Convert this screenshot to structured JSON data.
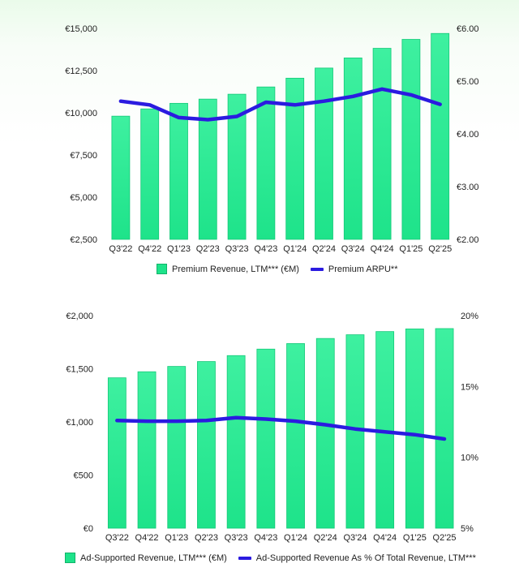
{
  "chart_data": [
    {
      "type": "bar",
      "categories": [
        "Q3'22",
        "Q4'22",
        "Q1'23",
        "Q2'23",
        "Q3'23",
        "Q4'23",
        "Q1'24",
        "Q2'24",
        "Q3'24",
        "Q4'24",
        "Q1'25",
        "Q2'25"
      ],
      "series": [
        {
          "name": "Premium Revenue, LTM*** (€M)",
          "type": "bar",
          "axis": "left",
          "values": [
            9800,
            10230,
            10560,
            10810,
            11100,
            11530,
            12050,
            12650,
            13250,
            13820,
            14350,
            14700
          ]
        },
        {
          "name": "Premium ARPU**",
          "type": "line",
          "axis": "right",
          "values": [
            4.62,
            4.55,
            4.31,
            4.27,
            4.33,
            4.6,
            4.55,
            4.62,
            4.71,
            4.85,
            4.74,
            4.56
          ]
        }
      ],
      "left_axis": {
        "ylim": [
          2500,
          15000
        ],
        "ticks": [
          "€2,500",
          "€5,000",
          "€7,500",
          "€10,000",
          "€12,500",
          "€15,000"
        ]
      },
      "right_axis": {
        "ylim": [
          2.0,
          6.0
        ],
        "ticks": [
          "€2.00",
          "€3.00",
          "€4.00",
          "€5.00",
          "€6.00"
        ]
      },
      "legend": "bottom",
      "bar_color": "#1ee38a",
      "line_color": "#2b1be0"
    },
    {
      "type": "bar",
      "categories": [
        "Q3'22",
        "Q4'22",
        "Q1'23",
        "Q2'23",
        "Q3'23",
        "Q4'23",
        "Q1'24",
        "Q2'24",
        "Q3'24",
        "Q4'24",
        "Q1'25",
        "Q2'25"
      ],
      "series": [
        {
          "name": "Ad-Supported Revenue, LTM*** (€M)",
          "type": "bar",
          "axis": "left",
          "values": [
            1415,
            1472,
            1522,
            1568,
            1624,
            1685,
            1737,
            1785,
            1820,
            1850,
            1875,
            1878
          ]
        },
        {
          "name": "Ad-Supported Revenue As % Of Total Revenue, LTM***",
          "type": "line",
          "axis": "right",
          "values": [
            12.6,
            12.55,
            12.55,
            12.6,
            12.8,
            12.7,
            12.55,
            12.3,
            12.0,
            11.8,
            11.6,
            11.3
          ]
        }
      ],
      "left_axis": {
        "ylim": [
          0,
          2000
        ],
        "ticks": [
          "€0",
          "€500",
          "€1,000",
          "€1,500",
          "€2,000"
        ]
      },
      "right_axis": {
        "ylim": [
          5,
          20
        ],
        "ticks": [
          "5%",
          "10%",
          "15%",
          "20%"
        ]
      },
      "legend": "bottom",
      "bar_color": "#1ee38a",
      "line_color": "#2b1be0"
    }
  ]
}
